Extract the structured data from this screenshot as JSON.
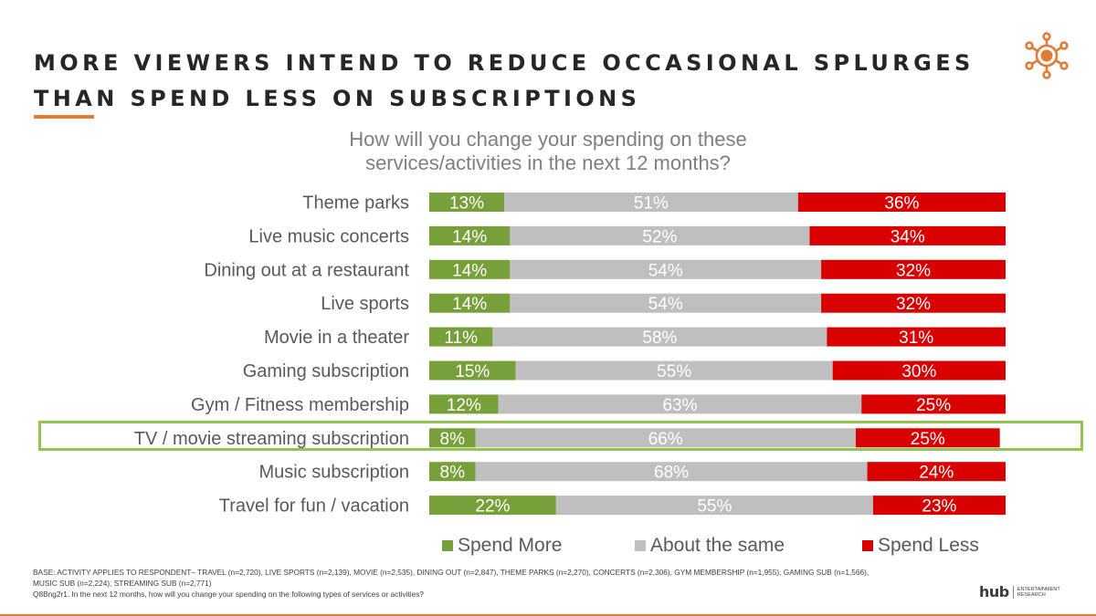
{
  "header": {
    "title_line1": "MORE VIEWERS INTEND TO REDUCE OCCASIONAL SPLURGES",
    "title_line2": "THAN SPEND LESS ON SUBSCRIPTIONS",
    "brand_icon": "sun-network-icon"
  },
  "colors": {
    "accent": "#e07b39",
    "spend_more": "#77a03a",
    "about_same": "#bfbfbf",
    "spend_less": "#d90000",
    "highlight": "#92c450"
  },
  "chart_data": {
    "type": "bar",
    "orientation": "horizontal",
    "stacked": true,
    "percent_stacked": true,
    "title": "How will you change your spending on these services/activities in the next 12 months?",
    "title_line1": "How will you change your spending on these",
    "title_line2": "services/activities in the next 12 months?",
    "xlabel": "",
    "ylabel": "",
    "xlim": [
      0,
      100
    ],
    "grid": false,
    "legend_position": "bottom",
    "highlighted_category": "TV / movie streaming subscription",
    "categories": [
      "Theme parks",
      "Live music concerts",
      "Dining out at a restaurant",
      "Live sports",
      "Movie in a theater",
      "Gaming subscription",
      "Gym / Fitness membership",
      "TV / movie streaming subscription",
      "Music subscription",
      "Travel for fun / vacation"
    ],
    "series": [
      {
        "name": "Spend More",
        "color": "#77a03a",
        "values": [
          13,
          14,
          14,
          14,
          11,
          15,
          12,
          8,
          8,
          22
        ]
      },
      {
        "name": "About the same",
        "color": "#bfbfbf",
        "values": [
          51,
          52,
          54,
          54,
          58,
          55,
          63,
          66,
          68,
          55
        ]
      },
      {
        "name": "Spend Less",
        "color": "#d90000",
        "values": [
          36,
          34,
          32,
          32,
          31,
          30,
          25,
          25,
          24,
          23
        ]
      }
    ]
  },
  "legend": {
    "items": [
      {
        "label": "Spend More"
      },
      {
        "label": "About the same"
      },
      {
        "label": "Spend Less"
      }
    ]
  },
  "footer": {
    "base_line1": "BASE: ACTIVITY APPLIES TO RESPONDENT– TRAVEL (n=2,720), LIVE SPORTS (n=2,139), MOVIE (n=2,535), DINING OUT (n=2,847), THEME PARKS (n=2,270), CONCERTS (n=2,306), GYM MEMBERSHIP (n=1,955), GAMING SUB (n=1,566),",
    "base_line2": "MUSIC SUB (n=2,224), STREAMING SUB (n=2,771)",
    "question": "Q8Bng2r1. In the next 12 months, how will you change your spending on the following types of services or activities?",
    "logo_word": "hub",
    "logo_sub1": "ENTERTAINMENT",
    "logo_sub2": "RESEARCH"
  }
}
